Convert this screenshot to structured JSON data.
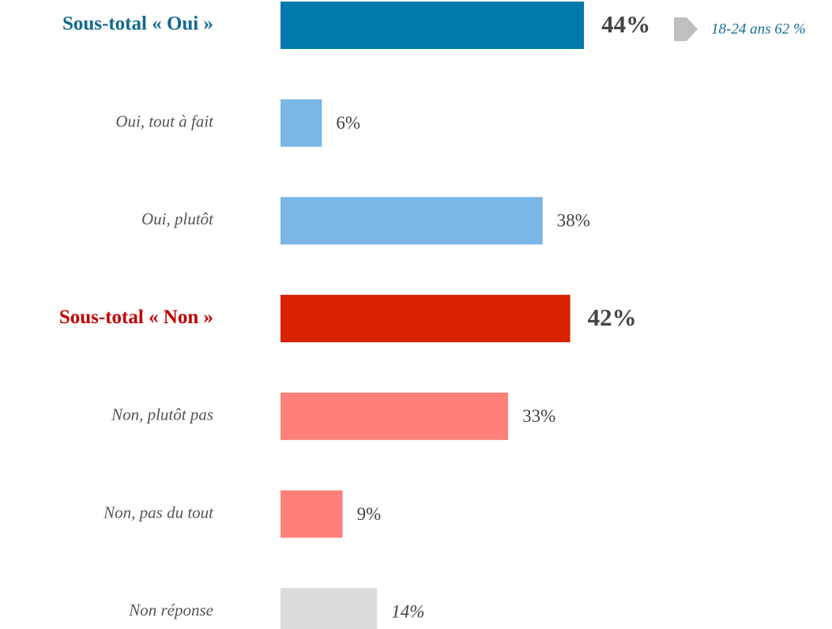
{
  "chart_data": {
    "type": "bar",
    "orientation": "horizontal",
    "categories": [
      "Sous-total « Oui »",
      "Oui, tout à fait",
      "Oui, plutôt",
      "Sous-total « Non »",
      "Non, plutôt pas",
      "Non, pas du tout",
      "Non réponse"
    ],
    "values": [
      44,
      6,
      38,
      42,
      33,
      9,
      14
    ],
    "value_labels": [
      "44%",
      "6%",
      "38%",
      "42%",
      "33%",
      "9%",
      "14%"
    ],
    "colors": [
      "#007aad",
      "#7ab6e6",
      "#7ab6e6",
      "#d92200",
      "#ff807b",
      "#ff807b",
      "#dcdcdc"
    ],
    "label_colors": [
      "#12698f",
      "#555555",
      "#555555",
      "#c00000",
      "#555555",
      "#555555",
      "#555555"
    ],
    "annotation": "18-24 ans 62 %"
  }
}
